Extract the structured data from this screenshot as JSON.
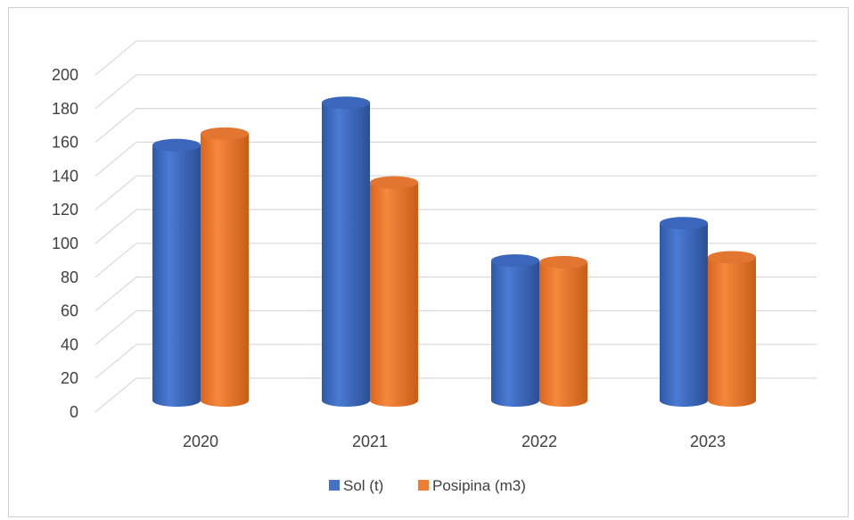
{
  "chart_data": {
    "type": "bar",
    "style": "3d-cylinder",
    "categories": [
      "2020",
      "2021",
      "2022",
      "2023"
    ],
    "series": [
      {
        "name": "Sol (t)",
        "values": [
          157,
          183,
          86,
          109
        ],
        "color": "#4472C4"
      },
      {
        "name": "Posipina (m3)",
        "values": [
          164,
          134,
          85,
          88
        ],
        "color": "#ED7D31"
      }
    ],
    "y_ticks": [
      "0",
      "20",
      "40",
      "60",
      "80",
      "100",
      "120",
      "140",
      "160",
      "180",
      "200"
    ],
    "ylim": [
      0,
      200
    ],
    "grid": true,
    "legend_position": "bottom"
  }
}
